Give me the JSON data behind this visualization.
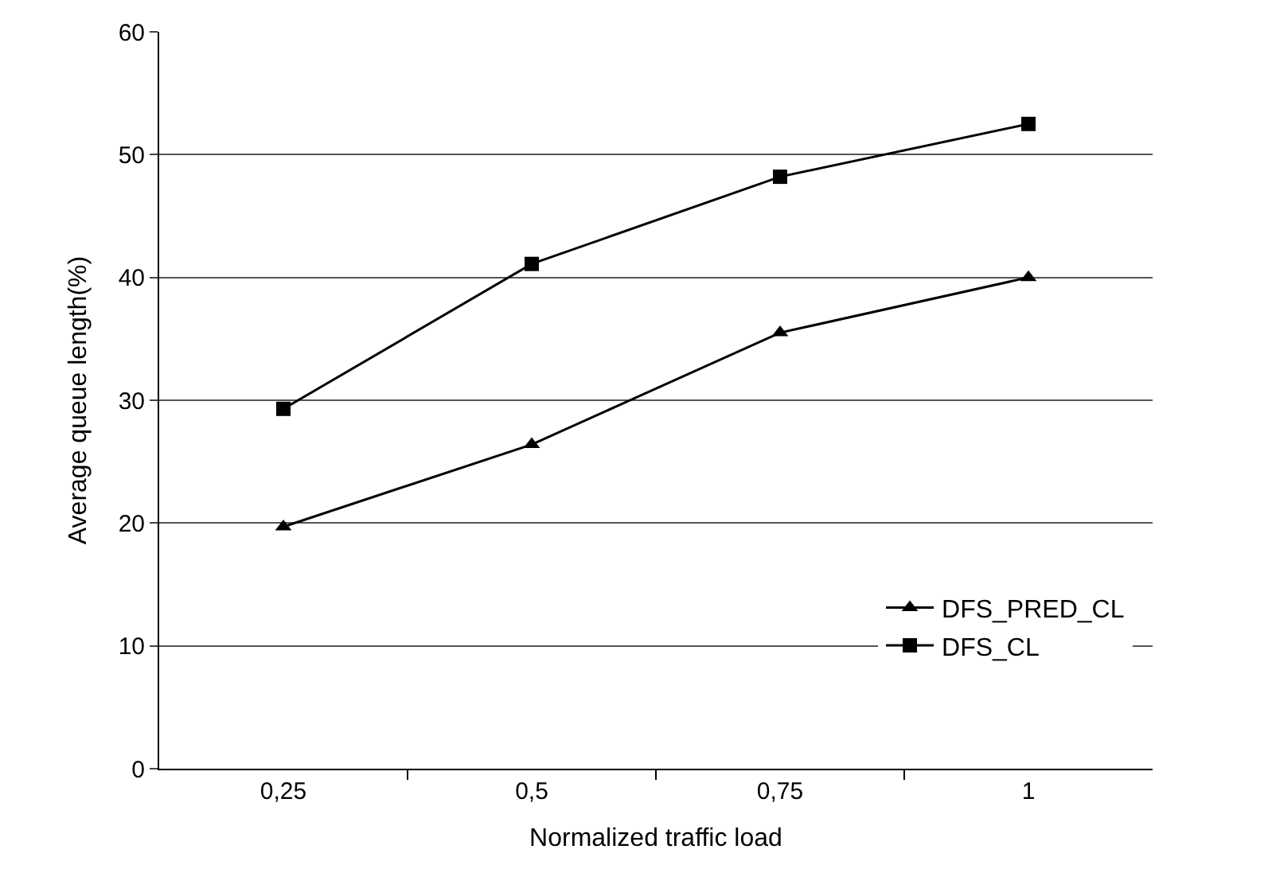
{
  "chart_data": {
    "type": "line",
    "xlabel": "Normalized traffic load",
    "ylabel": "Average queue length(%)",
    "categories": [
      "0,25",
      "0,5",
      "0,75",
      "1"
    ],
    "series": [
      {
        "name": "DFS_PRED_CL",
        "color": "#000000",
        "marker": "triangle",
        "values": [
          19.7,
          26.4,
          35.5,
          40.0
        ]
      },
      {
        "name": "DFS_CL",
        "color": "#000000",
        "marker": "square",
        "values": [
          29.3,
          41.1,
          48.2,
          52.5
        ]
      }
    ],
    "ylim": [
      0,
      60
    ],
    "yticks": [
      0,
      10,
      20,
      30,
      40,
      50,
      60
    ],
    "grid": "y",
    "legend": "bottom right",
    "line_style": "solid"
  }
}
